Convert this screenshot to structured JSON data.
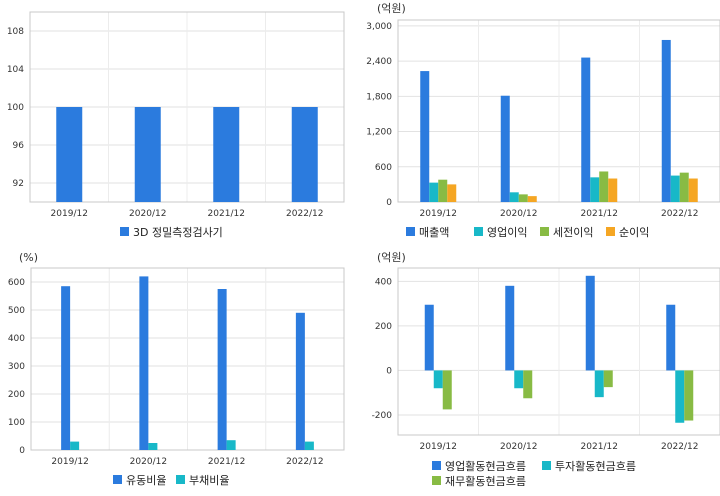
{
  "chart_data": [
    {
      "type": "bar",
      "categories": [
        "2019/12",
        "2020/12",
        "2021/12",
        "2022/12"
      ],
      "series": [
        {
          "name": "3D 정밀측정검사기",
          "values": [
            100,
            100,
            100,
            100
          ],
          "color": "#2b7bde"
        }
      ],
      "unit": "",
      "yticks": [
        92,
        96,
        100,
        104,
        108
      ],
      "ylim": [
        90,
        110
      ],
      "grid": true,
      "legend": "bottom"
    },
    {
      "type": "bar",
      "categories": [
        "2019/12",
        "2020/12",
        "2021/12",
        "2022/12"
      ],
      "series": [
        {
          "name": "매출액",
          "values": [
            2230,
            1810,
            2460,
            2760
          ],
          "color": "#2b7bde"
        },
        {
          "name": "영업이익",
          "values": [
            330,
            165,
            420,
            450
          ],
          "color": "#18b8c8"
        },
        {
          "name": "세전이익",
          "values": [
            380,
            130,
            520,
            500
          ],
          "color": "#88bb44"
        },
        {
          "name": "순이익",
          "values": [
            300,
            100,
            400,
            400
          ],
          "color": "#f5a623"
        }
      ],
      "unit": "(억원)",
      "yticks": [
        0,
        600,
        1200,
        1800,
        2400,
        3000
      ],
      "ytick_labels": [
        "0",
        "600",
        "1,200",
        "1,800",
        "2,400",
        "3,000"
      ],
      "ylim": [
        0,
        3100
      ],
      "grid": true,
      "legend": "bottom"
    },
    {
      "type": "bar",
      "categories": [
        "2019/12",
        "2020/12",
        "2021/12",
        "2022/12"
      ],
      "series": [
        {
          "name": "유동비율",
          "values": [
            585,
            620,
            575,
            490
          ],
          "color": "#2b7bde"
        },
        {
          "name": "부채비율",
          "values": [
            30,
            25,
            35,
            30
          ],
          "color": "#18b8c8"
        }
      ],
      "unit": "(%)",
      "yticks": [
        0,
        100,
        200,
        300,
        400,
        500,
        600
      ],
      "ylim": [
        0,
        650
      ],
      "grid": true,
      "legend": "bottom"
    },
    {
      "type": "bar",
      "categories": [
        "2019/12",
        "2020/12",
        "2021/12",
        "2022/12"
      ],
      "series": [
        {
          "name": "영업활동현금흐름",
          "values": [
            295,
            380,
            425,
            295
          ],
          "color": "#2b7bde"
        },
        {
          "name": "투자활동현금흐름",
          "values": [
            -80,
            -80,
            -120,
            -235
          ],
          "color": "#18b8c8"
        },
        {
          "name": "재무활동현금흐름",
          "values": [
            -175,
            -125,
            -75,
            -225
          ],
          "color": "#88bb44"
        }
      ],
      "unit": "(억원)",
      "yticks": [
        -200,
        0,
        200,
        400
      ],
      "ytick_labels": [
        "-200",
        "0",
        "200",
        "400"
      ],
      "ylim": [
        -290,
        460
      ],
      "grid": true,
      "legend": "bottom"
    }
  ]
}
